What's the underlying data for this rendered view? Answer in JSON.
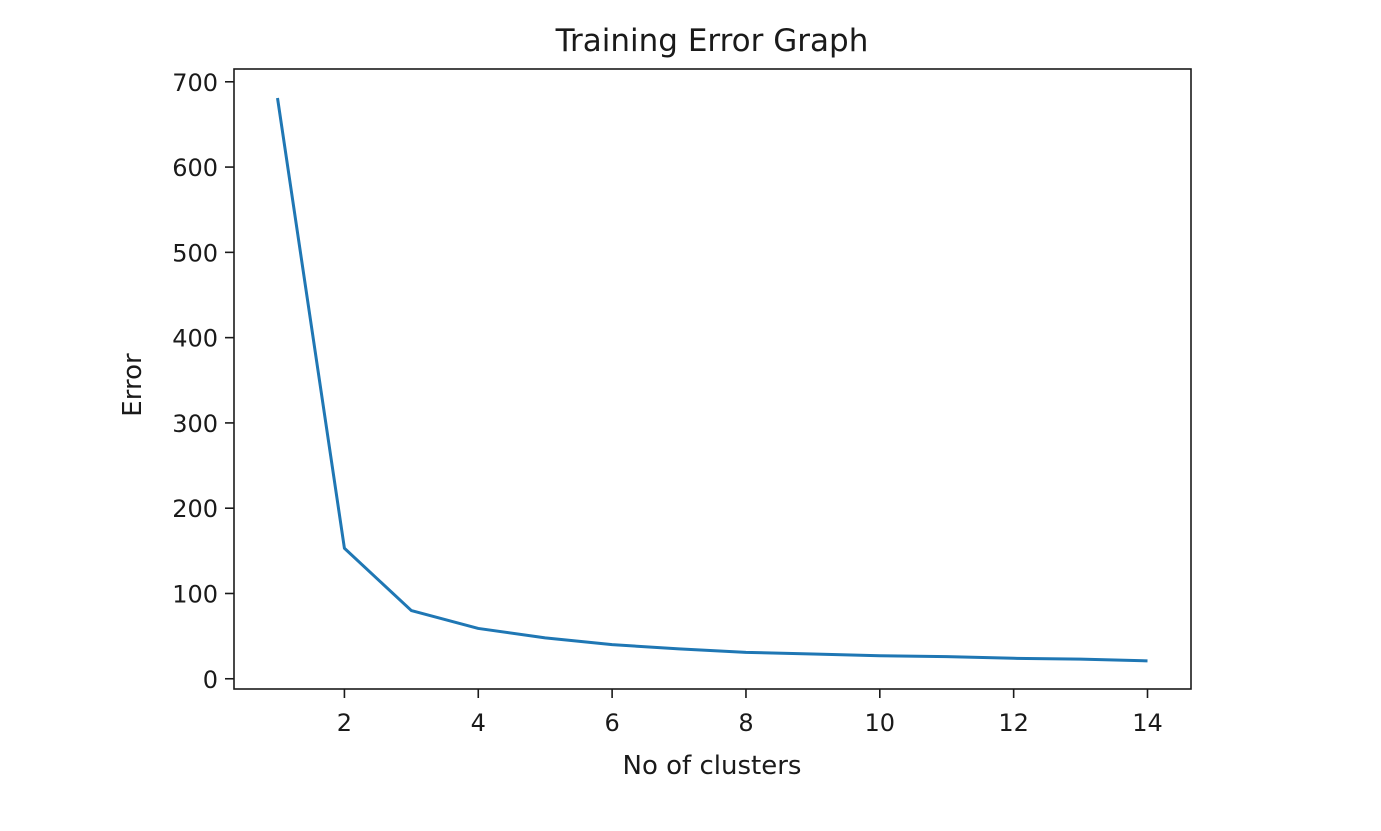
{
  "chart_data": {
    "type": "line",
    "title": "Training Error Graph",
    "xlabel": "No of clusters",
    "ylabel": "Error",
    "xlim": [
      0.35,
      14.65
    ],
    "ylim": [
      -12,
      715
    ],
    "xticks": [
      2,
      4,
      6,
      8,
      10,
      12,
      14
    ],
    "yticks": [
      0,
      100,
      200,
      300,
      400,
      500,
      600,
      700
    ],
    "grid": false,
    "series": [
      {
        "color": "#1f77b4",
        "x": [
          1,
          2,
          3,
          4,
          5,
          6,
          7,
          8,
          9,
          10,
          11,
          12,
          13,
          14
        ],
        "y": [
          681,
          153,
          80,
          59,
          48,
          40,
          35,
          31,
          29,
          27,
          26,
          24,
          23,
          21
        ]
      }
    ]
  }
}
